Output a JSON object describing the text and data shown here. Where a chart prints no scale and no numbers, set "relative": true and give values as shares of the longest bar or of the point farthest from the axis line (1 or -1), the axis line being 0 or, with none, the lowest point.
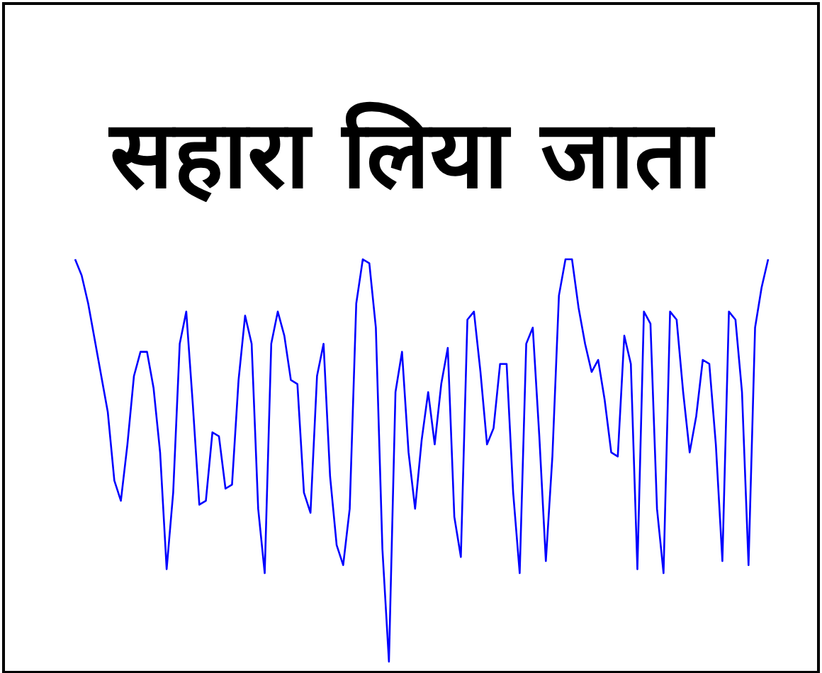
{
  "chart_data": {
    "type": "line",
    "title": "सहारा लिया जाता",
    "relative": true,
    "color": "#0000ff",
    "categories": [
      null,
      null,
      null,
      null,
      null,
      null,
      null,
      null,
      null,
      null,
      null,
      null,
      null,
      null,
      null,
      null,
      null,
      null,
      null,
      null,
      null,
      null,
      null,
      null,
      null,
      null,
      null,
      null,
      null,
      null,
      null,
      null,
      null,
      null,
      null,
      null,
      null,
      null,
      null,
      null,
      null,
      null,
      null,
      null,
      null,
      null,
      null,
      null,
      null,
      null,
      null,
      null,
      null,
      null,
      null,
      null,
      null,
      null,
      null,
      null,
      null,
      null,
      null,
      null,
      null,
      null,
      null,
      null,
      null,
      null,
      null,
      null,
      null,
      null,
      null,
      null,
      null,
      null,
      null,
      null,
      null,
      null,
      null,
      null,
      null,
      null,
      null,
      null,
      null,
      null,
      null,
      null,
      null,
      null,
      null,
      null,
      null,
      null,
      null,
      null,
      null,
      null,
      null,
      null,
      null,
      null,
      null
    ],
    "values": [
      1.0,
      0.96,
      0.89,
      0.8,
      0.71,
      0.62,
      0.45,
      0.4,
      0.54,
      0.71,
      0.77,
      0.77,
      0.68,
      0.52,
      0.23,
      0.42,
      0.79,
      0.87,
      0.64,
      0.39,
      0.4,
      0.57,
      0.56,
      0.43,
      0.44,
      0.7,
      0.86,
      0.79,
      0.38,
      0.22,
      0.79,
      0.87,
      0.81,
      0.7,
      0.69,
      0.42,
      0.37,
      0.71,
      0.79,
      0.46,
      0.29,
      0.24,
      0.38,
      0.89,
      1.0,
      0.99,
      0.83,
      0.28,
      0,
      0.67,
      0.77,
      0.52,
      0.38,
      0.55,
      0.67,
      0.54,
      0.69,
      0.78,
      0.36,
      0.26,
      0.85,
      0.87,
      0.72,
      0.54,
      0.58,
      0.74,
      0.74,
      0.42,
      0.22,
      0.79,
      0.83,
      0.56,
      0.25,
      0.51,
      0.91,
      1.0,
      1.0,
      0.88,
      0.79,
      0.72,
      0.75,
      0.65,
      0.52,
      0.51,
      0.81,
      0.74,
      0.23,
      0.87,
      0.84,
      0.38,
      0.22,
      0.87,
      0.85,
      0.67,
      0.52,
      0.61,
      0.75,
      0.74,
      0.54,
      0.25,
      0.87,
      0.85,
      0.67,
      0.24,
      0.83,
      0.93,
      1.0
    ]
  }
}
